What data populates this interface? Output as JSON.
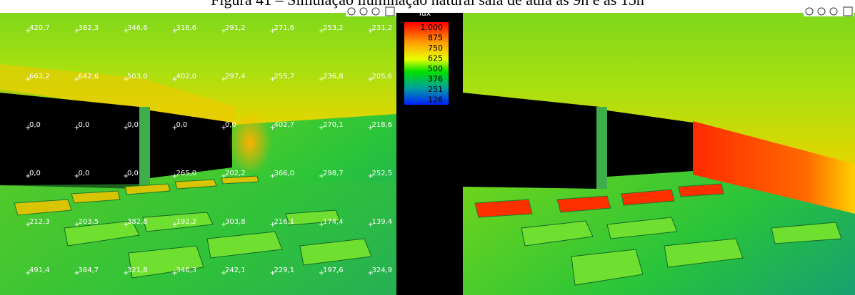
{
  "title": "Figura 41 – Simulação iluminação natural sala de aula às 9h e às 15h",
  "legend": {
    "unit": "lux",
    "labels": [
      "1.000",
      "875",
      "750",
      "625",
      "500",
      "376",
      "251",
      "126"
    ]
  },
  "grid_values": [
    [
      "420,7",
      "382,3",
      "346,6",
      "316,6",
      "291,2",
      "271,6",
      "253,2",
      "231,2"
    ],
    [
      "663,2",
      "642,6",
      "503,0",
      "402,0",
      "297,4",
      "255,7",
      "236,8",
      "205,6"
    ],
    [
      "0,0",
      "0,0",
      "0,0",
      "0,0",
      "0,0",
      "402,7",
      "270,1",
      "218,6"
    ],
    [
      "0,0",
      "0,0",
      "0,0",
      "265,0",
      "202,2",
      "366,0",
      "298,7",
      "252,5"
    ],
    [
      "212,3",
      "203,5",
      "382,8",
      "192,2",
      "303,8",
      "216,1",
      "174,4",
      "139,4"
    ],
    [
      "491,4",
      "384,7",
      "321,8",
      "346,3",
      "242,1",
      "229,1",
      "197,6",
      "324,9"
    ]
  ]
}
